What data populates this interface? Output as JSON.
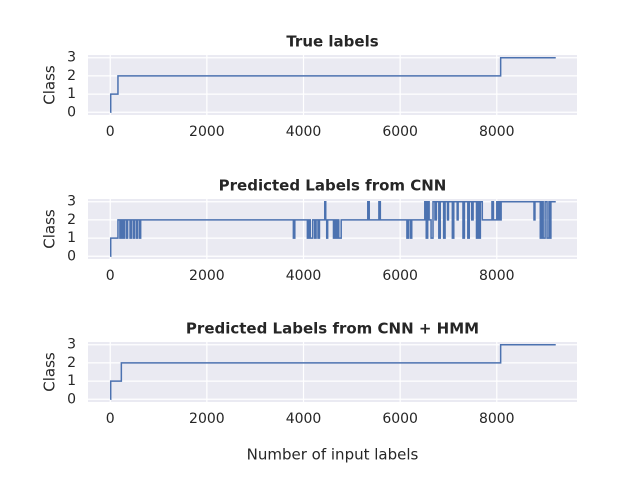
{
  "chart_data": [
    {
      "type": "line",
      "title": "True labels",
      "ylabel": "Class",
      "step": "post",
      "color": "#4c72b0",
      "grid": true,
      "xlim": [
        -460,
        9660
      ],
      "xticks": [
        0,
        2000,
        4000,
        6000,
        8000
      ],
      "ylim": [
        -0.15,
        3.15
      ],
      "yticks": [
        0,
        1,
        2,
        3
      ],
      "x": [
        0,
        10,
        160,
        8080,
        9220
      ],
      "values": [
        0,
        1,
        2,
        3,
        3
      ]
    },
    {
      "type": "line",
      "title": "Predicted Labels from CNN",
      "ylabel": "Class",
      "step": "post",
      "color": "#4c72b0",
      "grid": true,
      "xlim": [
        -460,
        9660
      ],
      "xticks": [
        0,
        2000,
        4000,
        6000,
        8000
      ],
      "ylim": [
        -0.15,
        3.15
      ],
      "yticks": [
        0,
        1,
        2,
        3
      ],
      "x": [
        0,
        10,
        160,
        200,
        230,
        260,
        290,
        330,
        360,
        410,
        440,
        480,
        500,
        540,
        570,
        610,
        630,
        3790,
        3820,
        4080,
        4110,
        4140,
        4190,
        4230,
        4260,
        4300,
        4330,
        4440,
        4460,
        4480,
        4500,
        4620,
        4650,
        4680,
        4700,
        4730,
        4780,
        5330,
        5360,
        5560,
        5590,
        6140,
        6170,
        6210,
        6240,
        6510,
        6540,
        6570,
        6600,
        6640,
        6680,
        6720,
        6750,
        6800,
        6830,
        6900,
        6930,
        6980,
        7000,
        7080,
        7110,
        7180,
        7200,
        7300,
        7330,
        7400,
        7430,
        7480,
        7510,
        7580,
        7610,
        7640,
        7660,
        7700,
        7900,
        7930,
        8000,
        8020,
        8040,
        8060,
        8090,
        8770,
        8790,
        8900,
        8930,
        8960,
        9000,
        9040,
        9080,
        9100,
        9120,
        9220
      ],
      "values": [
        0,
        1,
        2,
        1,
        2,
        1,
        2,
        1,
        2,
        1,
        2,
        1,
        2,
        1,
        2,
        1,
        2,
        1,
        2,
        1,
        2,
        1,
        2,
        1,
        2,
        1,
        2,
        3,
        2,
        1,
        2,
        1,
        2,
        1,
        2,
        1,
        2,
        3,
        2,
        3,
        2,
        1,
        2,
        1,
        2,
        3,
        1,
        3,
        2,
        1,
        3,
        2,
        3,
        1,
        3,
        1,
        3,
        2,
        3,
        1,
        3,
        2,
        3,
        1,
        3,
        1,
        3,
        2,
        3,
        1,
        3,
        1,
        3,
        2,
        3,
        2,
        3,
        2,
        3,
        2,
        3,
        2,
        3,
        1,
        3,
        1,
        3,
        1,
        3,
        1,
        3,
        3
      ]
    },
    {
      "type": "line",
      "title": "Predicted Labels from CNN + HMM",
      "ylabel": "Class",
      "xlabel": "Number of input labels",
      "step": "post",
      "color": "#4c72b0",
      "grid": true,
      "xlim": [
        -460,
        9660
      ],
      "xticks": [
        0,
        2000,
        4000,
        6000,
        8000
      ],
      "ylim": [
        -0.15,
        3.15
      ],
      "yticks": [
        0,
        1,
        2,
        3
      ],
      "x": [
        0,
        10,
        230,
        8080,
        9220
      ],
      "values": [
        0,
        1,
        2,
        3,
        3
      ]
    }
  ]
}
